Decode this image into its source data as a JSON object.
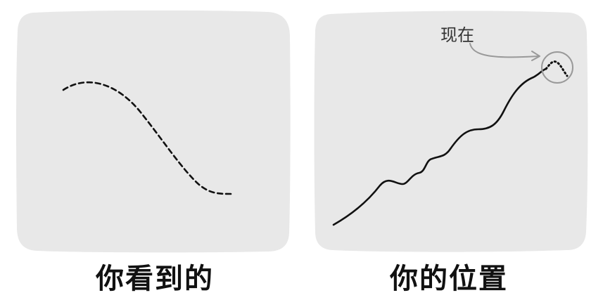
{
  "panels": {
    "left": {
      "caption": "你看到的"
    },
    "right": {
      "caption": "你的位置",
      "annotation": "现在"
    }
  },
  "colors": {
    "panel_fill": "#e8e8e8",
    "stroke": "#111111",
    "annotation_gray": "#999999"
  }
}
